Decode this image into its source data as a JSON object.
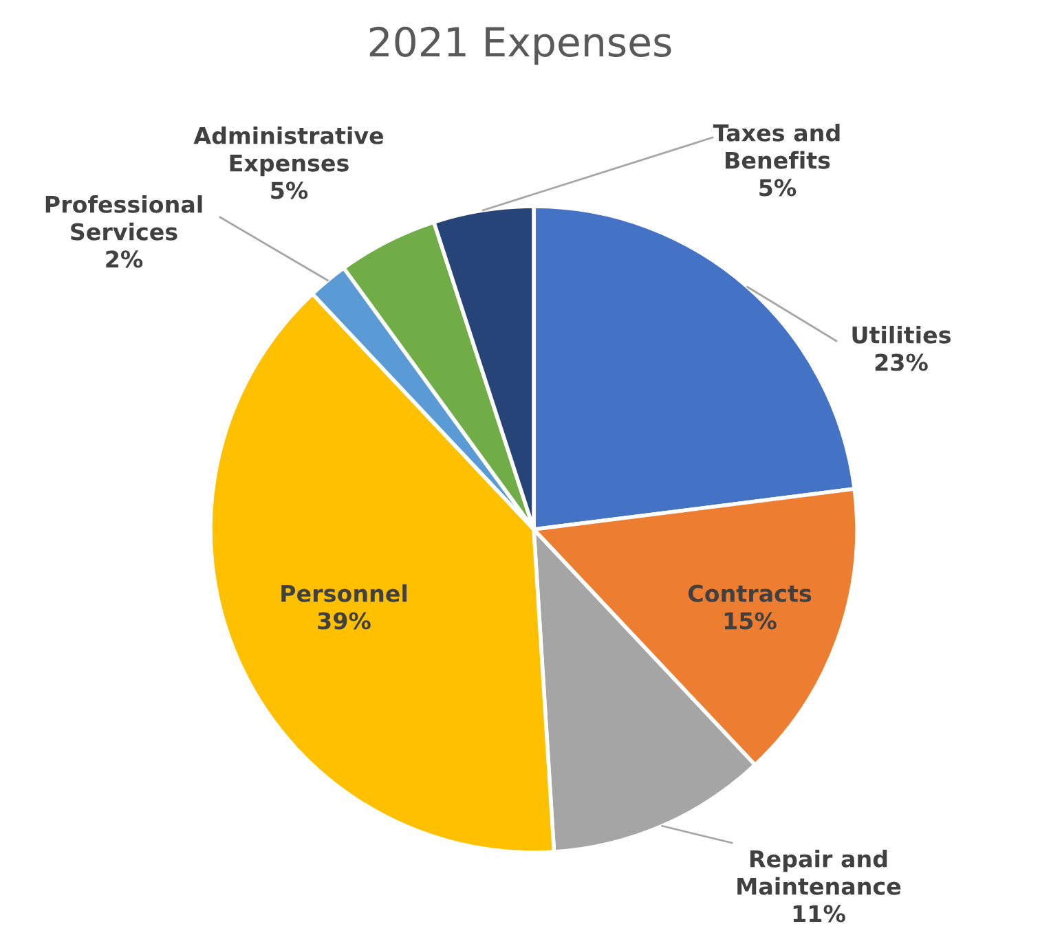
{
  "chart_data": {
    "type": "pie",
    "title": "2021 Expenses",
    "categories": [
      "Utilities",
      "Contracts",
      "Repair and Maintenance",
      "Personnel",
      "Professional Services",
      "Administrative Expenses",
      "Taxes and Benefits"
    ],
    "values": [
      23,
      15,
      11,
      39,
      2,
      5,
      5
    ],
    "value_labels": [
      "23%",
      "15%",
      "11%",
      "39%",
      "2%",
      "5%",
      "5%"
    ],
    "colors": [
      "#4472c4",
      "#ed7d31",
      "#a5a5a5",
      "#ffc000",
      "#5b9bd5",
      "#70ad47",
      "#264478"
    ]
  }
}
